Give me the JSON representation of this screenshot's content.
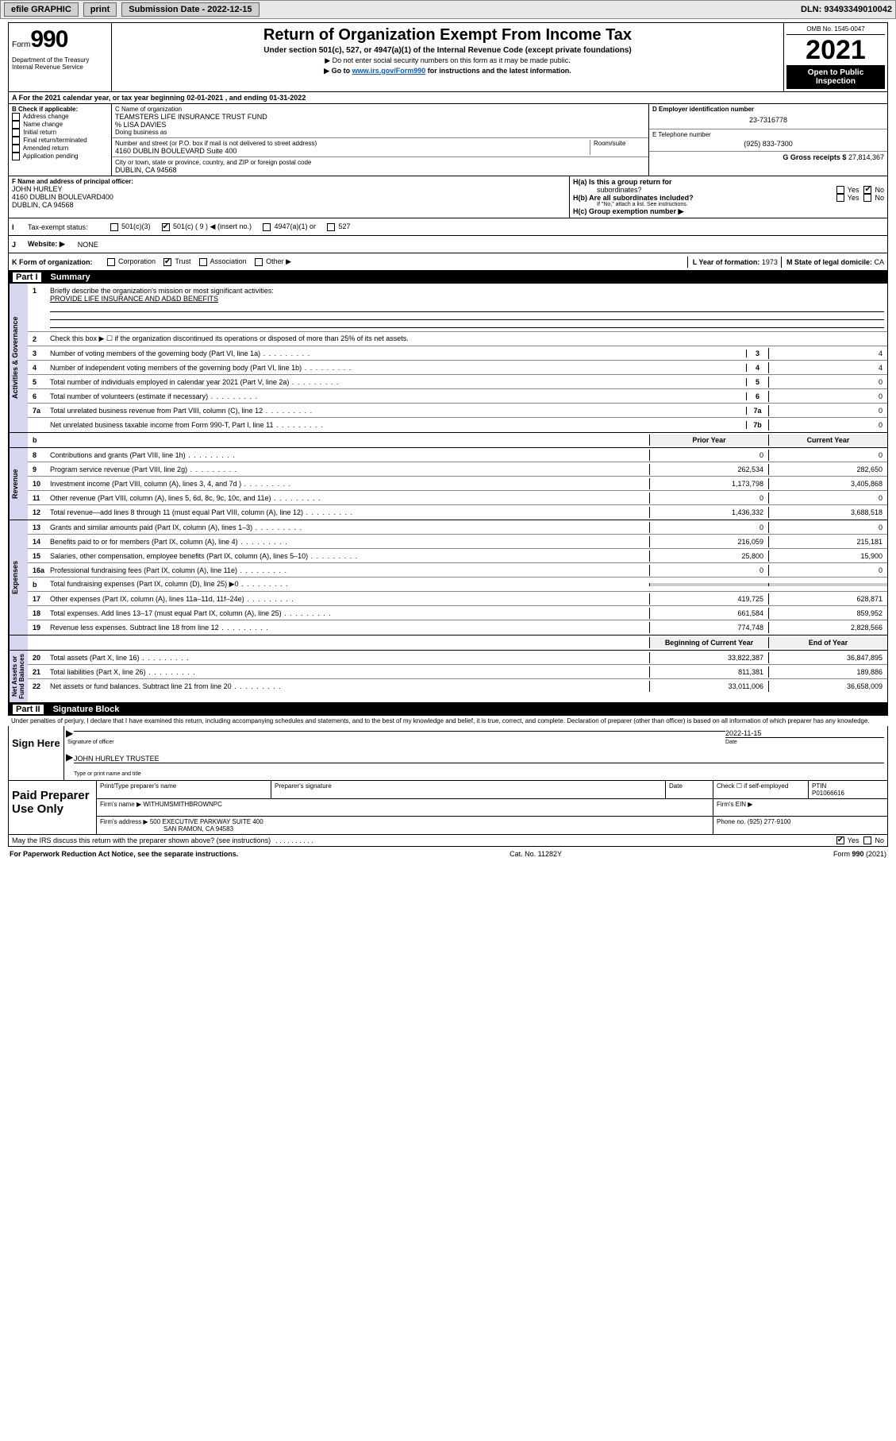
{
  "toolbar": {
    "efile_label": "efile GRAPHIC",
    "print_label": "print",
    "sub_date_label": "Submission Date - 2022-12-15",
    "dln_label": "DLN: 93493349010042"
  },
  "header": {
    "form_word": "Form",
    "form_number": "990",
    "dept": "Department of the Treasury\nInternal Revenue Service",
    "title": "Return of Organization Exempt From Income Tax",
    "subtitle": "Under section 501(c), 527, or 4947(a)(1) of the Internal Revenue Code (except private foundations)",
    "note1": "▶ Do not enter social security numbers on this form as it may be made public.",
    "note2_pre": "▶ Go to ",
    "note2_link": "www.irs.gov/Form990",
    "note2_post": " for instructions and the latest information.",
    "omb": "OMB No. 1545-0047",
    "year": "2021",
    "open_pub": "Open to Public\nInspection"
  },
  "period": {
    "text": "A For the 2021 calendar year, or tax year beginning 02-01-2021   , and ending 01-31-2022"
  },
  "boxB": {
    "title": "B Check if applicable:",
    "items": [
      "Address change",
      "Name change",
      "Initial return",
      "Final return/terminated",
      "Amended return",
      "Application pending"
    ]
  },
  "boxC": {
    "name_lbl": "C Name of organization",
    "name": "TEAMSTERS LIFE INSURANCE TRUST FUND",
    "care_of": "% LISA DAVIES",
    "dba_lbl": "Doing business as",
    "addr_lbl": "Number and street (or P.O. box if mail is not delivered to street address)",
    "room_lbl": "Room/suite",
    "addr": "4160 DUBLIN BOULEVARD Suite 400",
    "city_lbl": "City or town, state or province, country, and ZIP or foreign postal code",
    "city": "DUBLIN, CA  94568"
  },
  "boxD": {
    "lbl": "D Employer identification number",
    "val": "23-7316778"
  },
  "boxE": {
    "lbl": "E Telephone number",
    "val": "(925) 833-7300"
  },
  "boxG": {
    "lbl": "G Gross receipts $",
    "val": "27,814,367"
  },
  "boxF": {
    "lbl": "F Name and address of principal officer:",
    "name": "JOHN HURLEY",
    "addr": "4160 DUBLIN BOULEVARD400\nDUBLIN, CA  94568"
  },
  "boxH": {
    "ha": "H(a)  Is this a group return for",
    "ha2": "subordinates?",
    "hb": "H(b)  Are all subordinates included?",
    "hb_note": "If \"No,\" attach a list. See instructions.",
    "hc": "H(c)  Group exemption number ▶",
    "yes": "Yes",
    "no": "No"
  },
  "rowI": {
    "lbl": "I",
    "text": "Tax-exempt status:",
    "opts": [
      "501(c)(3)",
      "501(c) ( 9 ) ◀ (insert no.)",
      "4947(a)(1) or",
      "527"
    ],
    "checked_index": 1
  },
  "rowJ": {
    "lbl": "J",
    "text": "Website: ▶",
    "val": "NONE"
  },
  "rowK": {
    "lbl": "K Form of organization:",
    "opts": [
      "Corporation",
      "Trust",
      "Association",
      "Other ▶"
    ],
    "checked_index": 1,
    "L_lbl": "L Year of formation:",
    "L_val": "1973",
    "M_lbl": "M State of legal domicile:",
    "M_val": "CA"
  },
  "partI": {
    "part_lbl": "Part I",
    "title": "Summary",
    "q1_lbl": "1",
    "q1": "Briefly describe the organization's mission or most significant activities:",
    "q1_val": "PROVIDE LIFE INSURANCE AND AD&D BENEFITS",
    "q2_lbl": "2",
    "q2": "Check this box ▶ ☐  if the organization discontinued its operations or disposed of more than 25% of its net assets."
  },
  "sections": {
    "governance": {
      "label": "Activities & Governance",
      "rows": [
        {
          "n": "3",
          "d": "Number of voting members of the governing body (Part VI, line 1a)",
          "c": "3",
          "v": "4"
        },
        {
          "n": "4",
          "d": "Number of independent voting members of the governing body (Part VI, line 1b)",
          "c": "4",
          "v": "4"
        },
        {
          "n": "5",
          "d": "Total number of individuals employed in calendar year 2021 (Part V, line 2a)",
          "c": "5",
          "v": "0"
        },
        {
          "n": "6",
          "d": "Total number of volunteers (estimate if necessary)",
          "c": "6",
          "v": "0"
        },
        {
          "n": "7a",
          "d": "Total unrelated business revenue from Part VIII, column (C), line 12",
          "c": "7a",
          "v": "0"
        },
        {
          "n": "",
          "d": "Net unrelated business taxable income from Form 990-T, Part I, line 11",
          "c": "7b",
          "v": "0"
        }
      ]
    },
    "year_hdr": {
      "prior": "Prior Year",
      "current": "Current Year"
    },
    "revenue": {
      "label": "Revenue",
      "rows": [
        {
          "n": "8",
          "d": "Contributions and grants (Part VIII, line 1h)",
          "p": "0",
          "c": "0"
        },
        {
          "n": "9",
          "d": "Program service revenue (Part VIII, line 2g)",
          "p": "262,534",
          "c": "282,650"
        },
        {
          "n": "10",
          "d": "Investment income (Part VIII, column (A), lines 3, 4, and 7d )",
          "p": "1,173,798",
          "c": "3,405,868"
        },
        {
          "n": "11",
          "d": "Other revenue (Part VIII, column (A), lines 5, 6d, 8c, 9c, 10c, and 11e)",
          "p": "0",
          "c": "0"
        },
        {
          "n": "12",
          "d": "Total revenue—add lines 8 through 11 (must equal Part VIII, column (A), line 12)",
          "p": "1,436,332",
          "c": "3,688,518"
        }
      ]
    },
    "expenses": {
      "label": "Expenses",
      "rows": [
        {
          "n": "13",
          "d": "Grants and similar amounts paid (Part IX, column (A), lines 1–3)",
          "p": "0",
          "c": "0"
        },
        {
          "n": "14",
          "d": "Benefits paid to or for members (Part IX, column (A), line 4)",
          "p": "216,059",
          "c": "215,181"
        },
        {
          "n": "15",
          "d": "Salaries, other compensation, employee benefits (Part IX, column (A), lines 5–10)",
          "p": "25,800",
          "c": "15,900"
        },
        {
          "n": "16a",
          "d": "Professional fundraising fees (Part IX, column (A), line 11e)",
          "p": "0",
          "c": "0"
        },
        {
          "n": "b",
          "d": "Total fundraising expenses (Part IX, column (D), line 25) ▶0",
          "p": "",
          "c": "",
          "grey": true
        },
        {
          "n": "17",
          "d": "Other expenses (Part IX, column (A), lines 11a–11d, 11f–24e)",
          "p": "419,725",
          "c": "628,871"
        },
        {
          "n": "18",
          "d": "Total expenses. Add lines 13–17 (must equal Part IX, column (A), line 25)",
          "p": "661,584",
          "c": "859,952"
        },
        {
          "n": "19",
          "d": "Revenue less expenses. Subtract line 18 from line 12",
          "p": "774,748",
          "c": "2,828,566"
        }
      ]
    },
    "netassets_hdr": {
      "begin": "Beginning of Current Year",
      "end": "End of Year"
    },
    "netassets": {
      "label": "Net Assets or\nFund Balances",
      "rows": [
        {
          "n": "20",
          "d": "Total assets (Part X, line 16)",
          "p": "33,822,387",
          "c": "36,847,895"
        },
        {
          "n": "21",
          "d": "Total liabilities (Part X, line 26)",
          "p": "811,381",
          "c": "189,886"
        },
        {
          "n": "22",
          "d": "Net assets or fund balances. Subtract line 21 from line 20",
          "p": "33,011,006",
          "c": "36,658,009"
        }
      ]
    }
  },
  "partII": {
    "part_lbl": "Part II",
    "title": "Signature Block",
    "decl": "Under penalties of perjury, I declare that I have examined this return, including accompanying schedules and statements, and to the best of my knowledge and belief, it is true, correct, and complete. Declaration of preparer (other than officer) is based on all information of which preparer has any knowledge.",
    "sign_here": "Sign Here",
    "sig_cap1": "Signature of officer",
    "sig_date": "2022-11-15",
    "sig_date_cap": "Date",
    "officer": "JOHN HURLEY  TRUSTEE",
    "sig_cap2": "Type or print name and title",
    "paid_lbl": "Paid Preparer Use Only",
    "prep": {
      "h1": "Print/Type preparer's name",
      "h2": "Preparer's signature",
      "h3": "Date",
      "h4": "Check ☐ if self-employed",
      "h5": "PTIN",
      "ptin": "P01066616",
      "firm_lbl": "Firm's name   ▶",
      "firm": "WITHUMSMITHBROWNPC",
      "ein_lbl": "Firm's EIN ▶",
      "addr_lbl": "Firm's address ▶",
      "addr": "500 EXECUTIVE PARKWAY SUITE 400",
      "addr2": "SAN RAMON, CA  94583",
      "phone_lbl": "Phone no.",
      "phone": "(925) 277-9100"
    },
    "may_discuss": "May the IRS discuss this return with the preparer shown above? (see instructions)",
    "yes": "Yes",
    "no": "No"
  },
  "footer": {
    "left": "For Paperwork Reduction Act Notice, see the separate instructions.",
    "mid": "Cat. No. 11282Y",
    "right": "Form 990 (2021)"
  },
  "colors": {
    "accent": "#0b57d0",
    "sidebar": "#d6d6ee"
  }
}
